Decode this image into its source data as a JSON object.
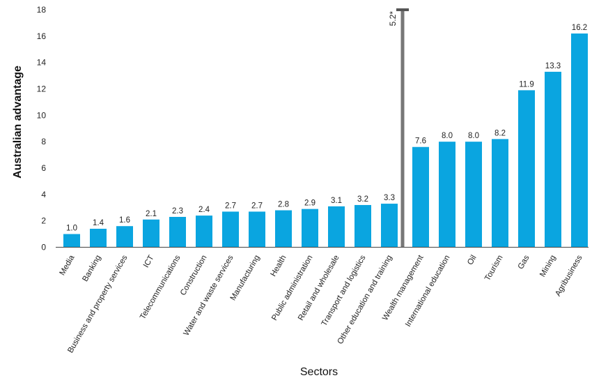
{
  "chart_data": {
    "type": "bar",
    "xlabel": "Sectors",
    "ylabel": "Australian advantage",
    "ylim": [
      0,
      18
    ],
    "yticks": [
      0,
      2,
      4,
      6,
      8,
      10,
      12,
      14,
      16,
      18
    ],
    "bar_color": "#0aa5e0",
    "divider_color": "#777777",
    "categories": [
      "Media",
      "Banking",
      "Business and property services",
      "ICT",
      "Telecommunications",
      "Construction",
      "Water and waste services",
      "Manufacturing",
      "Health",
      "Public administration",
      "Retail and wholesale",
      "Transport and logistics",
      "Other education and training",
      "Wealth management",
      "International education",
      "Oil",
      "Tourism",
      "Gas",
      "Mining",
      "Agribusiness"
    ],
    "values": [
      1.0,
      1.4,
      1.6,
      2.1,
      2.3,
      2.4,
      2.7,
      2.7,
      2.8,
      2.9,
      3.1,
      3.2,
      3.3,
      7.6,
      8.0,
      8.0,
      8.2,
      11.9,
      13.3,
      16.2
    ],
    "value_labels": [
      "1.0",
      "1.4",
      "1.6",
      "2.1",
      "2.3",
      "2.4",
      "2.7",
      "2.7",
      "2.8",
      "2.9",
      "3.1",
      "3.2",
      "3.3",
      "7.6",
      "8.0",
      "8.0",
      "8.2",
      "11.9",
      "13.3",
      "16.2"
    ],
    "divider": {
      "value": 18,
      "label": "5.2*"
    }
  }
}
